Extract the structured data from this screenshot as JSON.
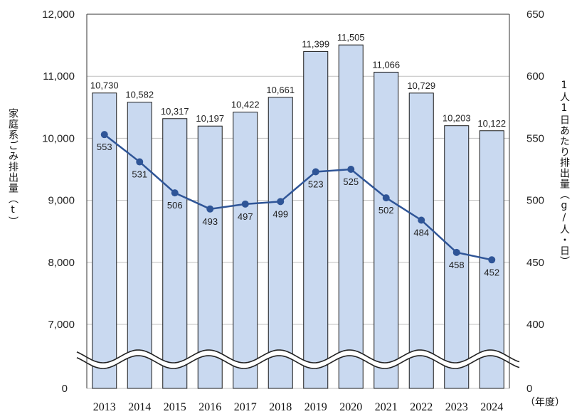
{
  "chart_data": {
    "type": "bar+line",
    "categories": [
      "2013",
      "2014",
      "2015",
      "2016",
      "2017",
      "2018",
      "2019",
      "2020",
      "2021",
      "2022",
      "2023",
      "2024"
    ],
    "series": [
      {
        "name": "家庭系ごみ排出量（t）",
        "kind": "bar",
        "axis": "left",
        "values": [
          10730,
          10582,
          10317,
          10197,
          10422,
          10661,
          11399,
          11505,
          11066,
          10729,
          10203,
          10122
        ],
        "labels": [
          "10,730",
          "10,582",
          "10,317",
          "10,197",
          "10,422",
          "10,661",
          "11,399",
          "11,505",
          "11,066",
          "10,729",
          "10,203",
          "10,122"
        ]
      },
      {
        "name": "1人1日あたり排出量（g/人・日）",
        "kind": "line",
        "axis": "right",
        "values": [
          553,
          531,
          506,
          493,
          497,
          499,
          523,
          525,
          502,
          484,
          458,
          452
        ],
        "labels": [
          "553",
          "531",
          "506",
          "493",
          "497",
          "499",
          "523",
          "525",
          "502",
          "484",
          "458",
          "452"
        ]
      }
    ],
    "left_axis": {
      "ticks": [
        12000,
        11000,
        10000,
        9000,
        8000,
        7000,
        0
      ],
      "tick_labels": [
        "12,000",
        "11,000",
        "10,000",
        "9,000",
        "8,000",
        "7,000",
        "0"
      ],
      "range": [
        6500,
        12000
      ],
      "broken": true
    },
    "right_axis": {
      "ticks": [
        650,
        600,
        550,
        500,
        450,
        400,
        0
      ],
      "tick_labels": [
        "650",
        "600",
        "550",
        "500",
        "450",
        "400",
        "0"
      ],
      "range": [
        375,
        650
      ],
      "broken": true
    },
    "ylabel_left": "家庭系ごみ排出量（t）",
    "ylabel_right": "1人1日あたり排出量（g/人・日）",
    "xlabel": "（年度）",
    "grid": "horizontal",
    "colors": {
      "bar_fill": "#c9d9f0",
      "bar_stroke": "#1a1a1a",
      "line": "#2f5597",
      "grid": "#bfbfbf"
    }
  }
}
